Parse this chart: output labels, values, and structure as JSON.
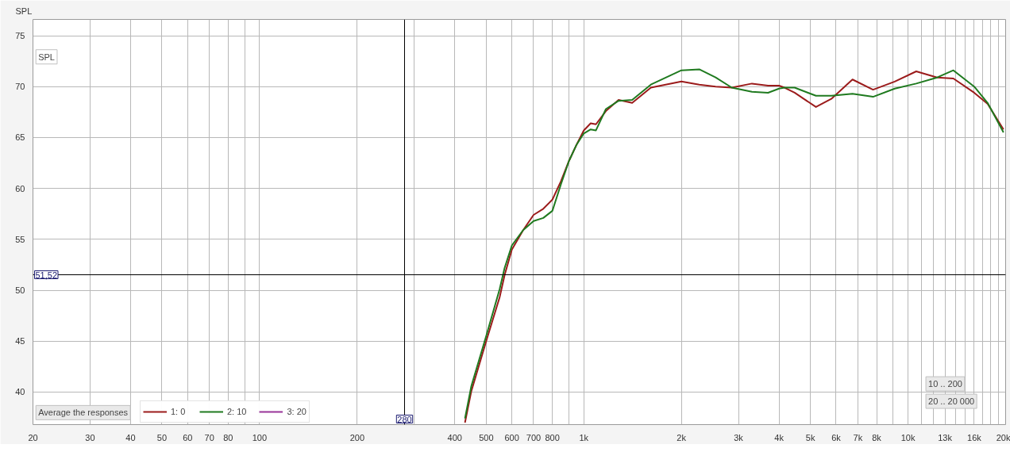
{
  "chart_data": {
    "type": "line",
    "ylabel": "SPL",
    "x": [
      430,
      450,
      500,
      550,
      570,
      600,
      650,
      700,
      750,
      800,
      850,
      900,
      950,
      1000,
      1050,
      1090,
      1170,
      1280,
      1410,
      1610,
      2000,
      2270,
      2550,
      2860,
      3300,
      3700,
      4000,
      4160,
      4470,
      5200,
      5800,
      6740,
      7800,
      9100,
      10600,
      12300,
      13800,
      16000,
      17600,
      19700
    ],
    "series": [
      {
        "name": "1: 0",
        "color": "#9b1b1b",
        "values": [
          37.0,
          40.1,
          45.0,
          49.3,
          51.5,
          54.0,
          55.9,
          57.4,
          58.0,
          58.9,
          60.7,
          62.7,
          64.3,
          65.7,
          66.4,
          66.3,
          67.6,
          68.7,
          68.4,
          69.9,
          70.5,
          70.2,
          70.0,
          69.9,
          70.3,
          70.1,
          70.1,
          69.9,
          69.4,
          68.0,
          68.8,
          70.7,
          69.7,
          70.5,
          71.5,
          70.9,
          70.8,
          69.4,
          68.3,
          65.8
        ]
      },
      {
        "name": "2: 10",
        "color": "#1f7a1f",
        "values": [
          37.4,
          40.6,
          45.5,
          50.1,
          52.2,
          54.4,
          55.9,
          56.8,
          57.1,
          57.8,
          60.4,
          62.7,
          64.3,
          65.4,
          65.8,
          65.7,
          67.8,
          68.6,
          68.7,
          70.2,
          71.6,
          71.7,
          70.9,
          69.9,
          69.5,
          69.4,
          69.8,
          69.9,
          69.9,
          69.1,
          69.1,
          69.3,
          69.0,
          69.8,
          70.3,
          70.9,
          71.6,
          70.0,
          68.4,
          65.5
        ]
      },
      {
        "name": "3: 20",
        "color": "#993399",
        "values": [
          null,
          null,
          null,
          null,
          null,
          null,
          null,
          null,
          null,
          null,
          null,
          null,
          null,
          null,
          null,
          null,
          null,
          null,
          null,
          null,
          null,
          null,
          null,
          null,
          null,
          null,
          null,
          null,
          null,
          null,
          null,
          null,
          null,
          null,
          null,
          null,
          null,
          null,
          null,
          null
        ]
      }
    ],
    "log": "x",
    "xlim": [
      20,
      20000
    ],
    "ylim": [
      36.8,
      76.6
    ],
    "xticks": [
      20,
      30,
      40,
      50,
      60,
      70,
      80,
      {
        "value": 90,
        "label": null
      },
      100,
      200,
      {
        "value": 300,
        "label": null
      },
      400,
      500,
      600,
      700,
      800,
      {
        "value": 900,
        "label": null
      },
      {
        "value": 1000,
        "label": "1k"
      },
      {
        "value": 2000,
        "label": "2k"
      },
      {
        "value": 3000,
        "label": "3k"
      },
      {
        "value": 4000,
        "label": "4k"
      },
      {
        "value": 5000,
        "label": "5k"
      },
      {
        "value": 6000,
        "label": "6k"
      },
      {
        "value": 7000,
        "label": "7k"
      },
      {
        "value": 8000,
        "label": "8k"
      },
      {
        "value": 9000,
        "label": null
      },
      {
        "value": 10000,
        "label": "10k"
      },
      {
        "value": 11000,
        "label": null
      },
      {
        "value": 12000,
        "label": null
      },
      {
        "value": 13000,
        "label": "13k"
      },
      {
        "value": 14000,
        "label": null
      },
      {
        "value": 15000,
        "label": null
      },
      {
        "value": 16000,
        "label": "16k"
      },
      {
        "value": 17000,
        "label": null
      },
      {
        "value": 18000,
        "label": null
      },
      {
        "value": 19000,
        "label": null
      },
      {
        "value": 20000,
        "label": "20k"
      }
    ],
    "yticks": [
      40,
      45,
      50,
      55,
      60,
      65,
      70,
      75
    ],
    "grid": true,
    "legend": "bottom left",
    "line_style": "solid",
    "marker": "none",
    "ref_lines": [
      {
        "axis": "x",
        "value": 280,
        "label": "280",
        "color": "#000000"
      },
      {
        "axis": "y",
        "value": 51.52,
        "label": "51,52",
        "color": "#000000"
      }
    ],
    "annotations": [
      "Average the responses",
      "10 .. 200",
      "20 .. 20 000",
      "SPL"
    ]
  }
}
